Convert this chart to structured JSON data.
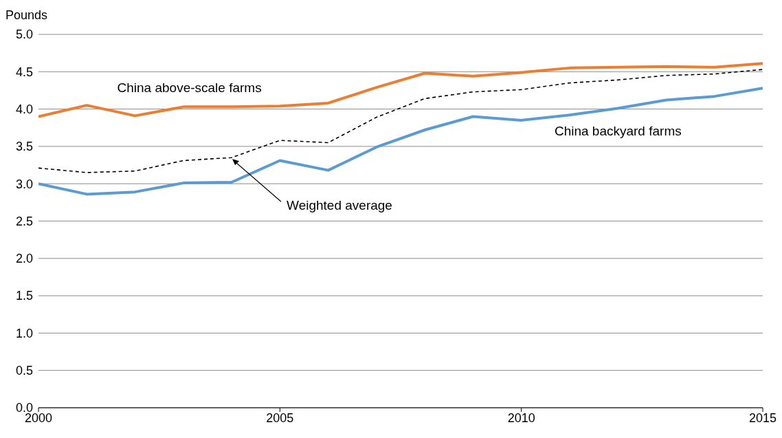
{
  "chart_data": {
    "type": "line",
    "ylabel": "Pounds",
    "x": [
      2000,
      2001,
      2002,
      2003,
      2004,
      2005,
      2006,
      2007,
      2008,
      2009,
      2010,
      2011,
      2012,
      2013,
      2014,
      2015
    ],
    "series": [
      {
        "name": "China above-scale farms",
        "color": "#ee7d31",
        "values": [
          3.9,
          4.05,
          3.91,
          4.03,
          4.03,
          4.04,
          4.08,
          4.29,
          4.48,
          4.44,
          4.49,
          4.55,
          4.56,
          4.57,
          4.56,
          4.61
        ]
      },
      {
        "name": "China backyard farms",
        "color": "#5b9bd5",
        "values": [
          3.0,
          2.86,
          2.89,
          3.01,
          3.02,
          3.31,
          3.18,
          3.49,
          3.72,
          3.9,
          3.85,
          3.92,
          4.01,
          4.12,
          4.17,
          4.28
        ]
      },
      {
        "name": "Weighted average",
        "color": "#000000",
        "line_style": "dashed",
        "values": [
          3.21,
          3.15,
          3.17,
          3.31,
          3.35,
          3.58,
          3.55,
          3.89,
          4.14,
          4.23,
          4.26,
          4.35,
          4.39,
          4.45,
          4.47,
          4.53
        ]
      }
    ],
    "xlim": [
      2000,
      2015
    ],
    "xticks": [
      2000,
      2005,
      2010,
      2015
    ],
    "ylim": [
      0,
      5
    ],
    "yticks": [
      {
        "value": 0,
        "label": "0.0"
      },
      0.5,
      {
        "value": 1,
        "label": "1.0"
      },
      1.5,
      {
        "value": 2,
        "label": "2.0"
      },
      2.5,
      {
        "value": 3,
        "label": "3.0"
      },
      3.5,
      {
        "value": 4,
        "label": "4.0"
      },
      4.5,
      {
        "value": 5,
        "label": "5.0"
      }
    ],
    "grid": "y",
    "marker": "none"
  }
}
